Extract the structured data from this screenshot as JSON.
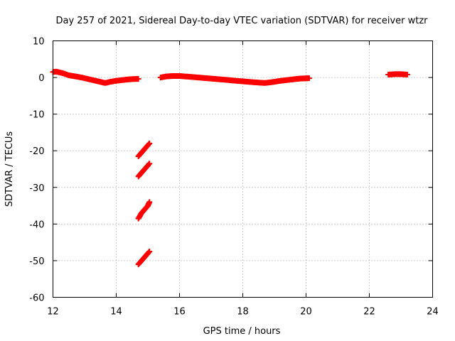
{
  "chart_data": {
    "type": "scatter",
    "title": "Day 257 of 2021, Sidereal Day-to-day VTEC variation (SDTVAR) for receiver wtzr",
    "xlabel": "GPS time / hours",
    "ylabel": "SDTVAR / TECUs",
    "xlim": [
      12,
      24
    ],
    "ylim": [
      -60,
      10
    ],
    "xticks": [
      12,
      14,
      16,
      18,
      20,
      22,
      24
    ],
    "yticks": [
      10,
      0,
      -10,
      -20,
      -30,
      -40,
      -50,
      -60
    ],
    "grid": true,
    "legend": "none",
    "marker": "plus",
    "series": [
      {
        "name": "SDTVAR",
        "color": "#ff0000",
        "segments": [
          {
            "x": [
              12.0,
              12.1,
              12.2,
              12.3,
              12.4,
              12.5,
              12.7,
              12.9,
              13.1,
              13.3,
              13.5,
              13.65,
              13.8,
              14.0,
              14.2,
              14.4,
              14.6,
              14.7
            ],
            "y": [
              1.5,
              1.6,
              1.4,
              1.2,
              0.9,
              0.6,
              0.3,
              0.0,
              -0.4,
              -0.8,
              -1.2,
              -1.5,
              -1.2,
              -0.9,
              -0.7,
              -0.5,
              -0.4,
              -0.4
            ]
          },
          {
            "x": [
              15.4,
              15.6,
              15.8,
              16.0,
              16.3,
              16.6,
              17.0,
              17.4,
              17.8,
              18.2,
              18.5,
              18.7,
              18.9,
              19.2,
              19.5,
              19.8,
              20.1
            ],
            "y": [
              0.0,
              0.3,
              0.4,
              0.4,
              0.2,
              0.0,
              -0.3,
              -0.6,
              -0.9,
              -1.2,
              -1.4,
              -1.5,
              -1.3,
              -0.9,
              -0.6,
              -0.3,
              -0.2
            ]
          },
          {
            "x": [
              22.6,
              22.8,
              23.0,
              23.2
            ],
            "y": [
              0.8,
              0.9,
              0.9,
              0.8
            ]
          },
          {
            "x": [
              14.7,
              14.8,
              14.9,
              15.0,
              15.05
            ],
            "y": [
              -21.5,
              -20.5,
              -19.5,
              -18.5,
              -18.0
            ]
          },
          {
            "x": [
              14.7,
              14.8,
              14.9,
              15.0,
              15.05
            ],
            "y": [
              -27.0,
              -26.0,
              -25.0,
              -24.0,
              -23.5
            ]
          },
          {
            "x": [
              14.7,
              14.8,
              14.9,
              15.0,
              15.05
            ],
            "y": [
              -38.5,
              -37.0,
              -36.0,
              -35.0,
              -34.0
            ]
          },
          {
            "x": [
              14.7,
              14.8,
              14.9,
              15.0,
              15.05
            ],
            "y": [
              -51.0,
              -50.0,
              -49.0,
              -48.0,
              -47.5
            ]
          }
        ]
      }
    ]
  }
}
